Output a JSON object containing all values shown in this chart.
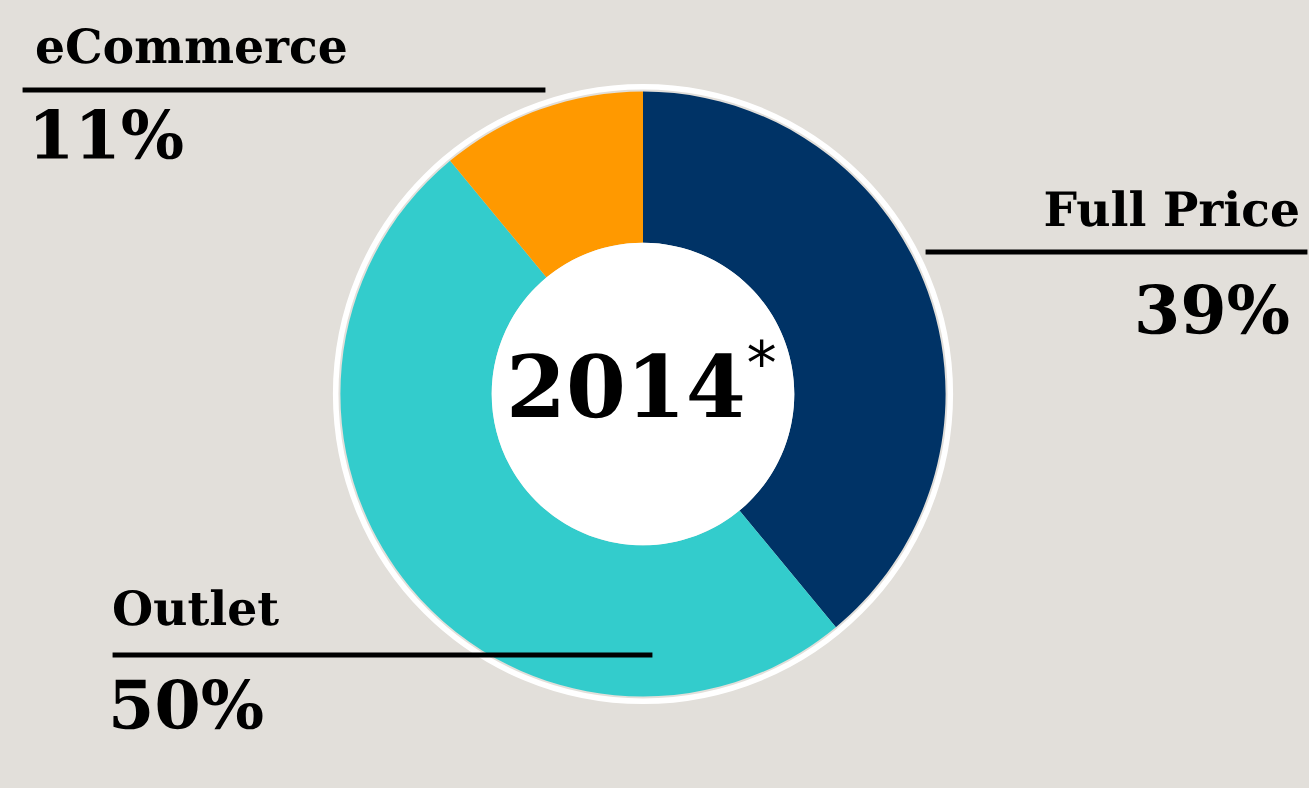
{
  "chart_data": {
    "type": "donut",
    "categories": [
      "Full Price",
      "Outlet",
      "eCommerce"
    ],
    "values": [
      39,
      50,
      11
    ],
    "colors": [
      "#003366",
      "#33cccc",
      "#ff9900"
    ],
    "value_labels": [
      "39%",
      "50%",
      "11%"
    ],
    "annotations": [
      "2014$^{*}$"
    ],
    "legend": false
  }
}
